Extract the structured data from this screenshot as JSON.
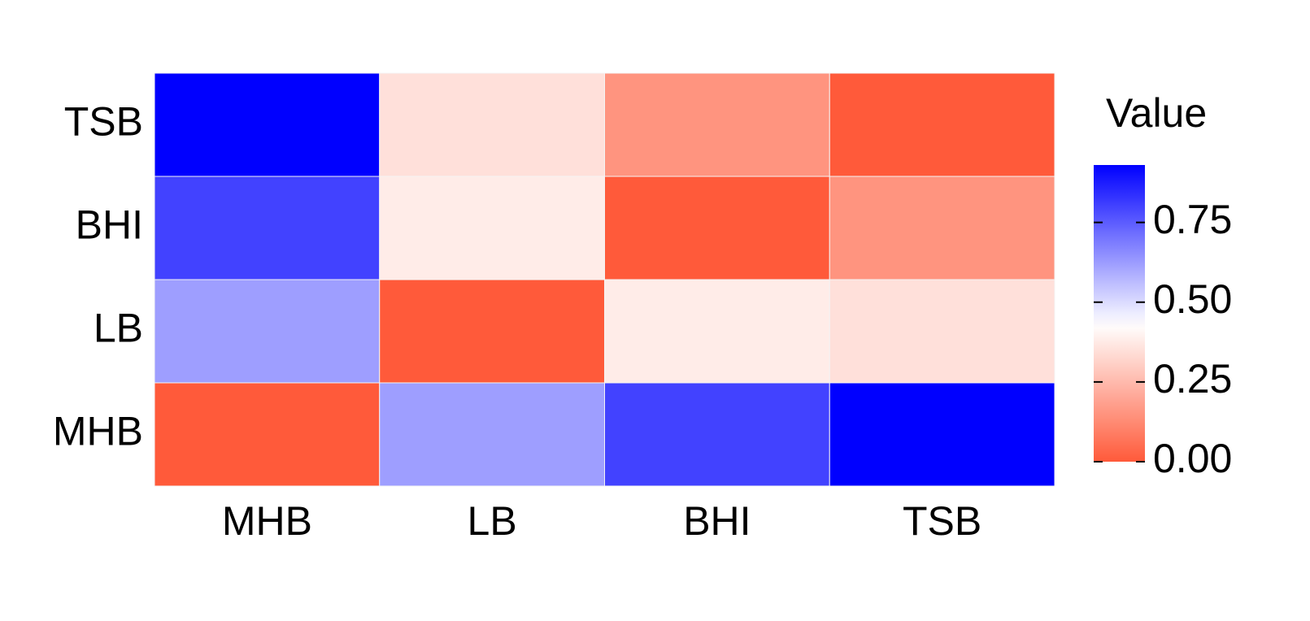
{
  "chart_data": {
    "type": "heatmap",
    "x_categories": [
      "MHB",
      "LB",
      "BHI",
      "TSB"
    ],
    "y_categories": [
      "MHB",
      "LB",
      "BHI",
      "TSB"
    ],
    "values": [
      [
        0,
        0.62,
        0.8,
        0.93
      ],
      [
        0.62,
        0,
        0.38,
        0.35
      ],
      [
        0.8,
        0.38,
        0,
        0.15
      ],
      [
        0.93,
        0.35,
        0.15,
        0
      ]
    ],
    "legend_title": "Value",
    "color_scale": {
      "low": "#ff5a3a",
      "mid": "#ffffff",
      "high": "#0000ff",
      "midpoint": 0.43
    },
    "clim": [
      0,
      0.93
    ],
    "cticks": [
      {
        "value": 0,
        "label": "0.00"
      },
      0.25,
      {
        "value": 0.5,
        "label": "0.50"
      },
      0.75
    ],
    "legend_position": "right"
  }
}
